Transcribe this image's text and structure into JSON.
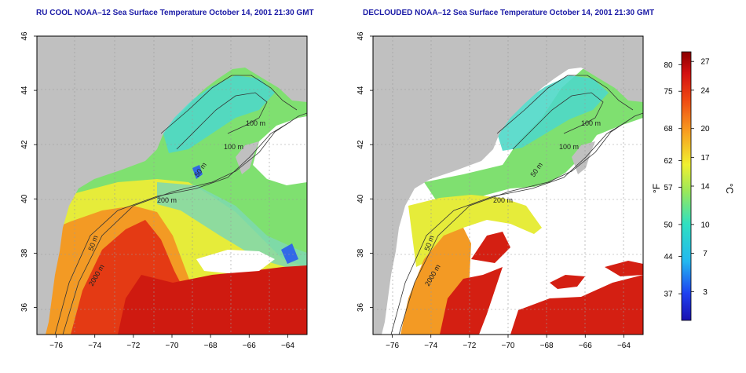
{
  "panels": [
    {
      "title": "RU COOL NOAA–12 Sea Surface Temperature October 14, 2001 21:30 GMT",
      "mode": "full",
      "contour_labels": [
        "100 m",
        "100 m",
        "50 m",
        "200 m",
        "50 m",
        "2000 m"
      ]
    },
    {
      "title": "DECLOUDED NOAA–12 Sea Surface Temperature October 14, 2001 21:30 GMT",
      "mode": "declouded",
      "contour_labels": [
        "100 m",
        "100 m",
        "50 m",
        "200 m",
        "50 m",
        "2000 m"
      ]
    }
  ],
  "axes": {
    "lon_ticks": [
      "−76",
      "−74",
      "−72",
      "−70",
      "−68",
      "−66",
      "−64"
    ],
    "lat_ticks": [
      "36",
      "38",
      "40",
      "42",
      "44",
      "46"
    ],
    "lon_range": [
      -77,
      -63
    ],
    "lat_range": [
      35,
      46
    ]
  },
  "colorbar": {
    "fahrenheit_ticks": [
      "80",
      "75",
      "68",
      "62",
      "57",
      "50",
      "44",
      "37"
    ],
    "celsius_ticks": [
      "27",
      "24",
      "20",
      "17",
      "14",
      "10",
      "7",
      "3"
    ],
    "fahrenheit_label": "°F",
    "celsius_label": "°C",
    "range_c": [
      0,
      28
    ]
  },
  "colors": {
    "land": "#c0c0c0",
    "cloud": "#ffffff",
    "title": "#1a1aa6",
    "contour": "#333333"
  }
}
